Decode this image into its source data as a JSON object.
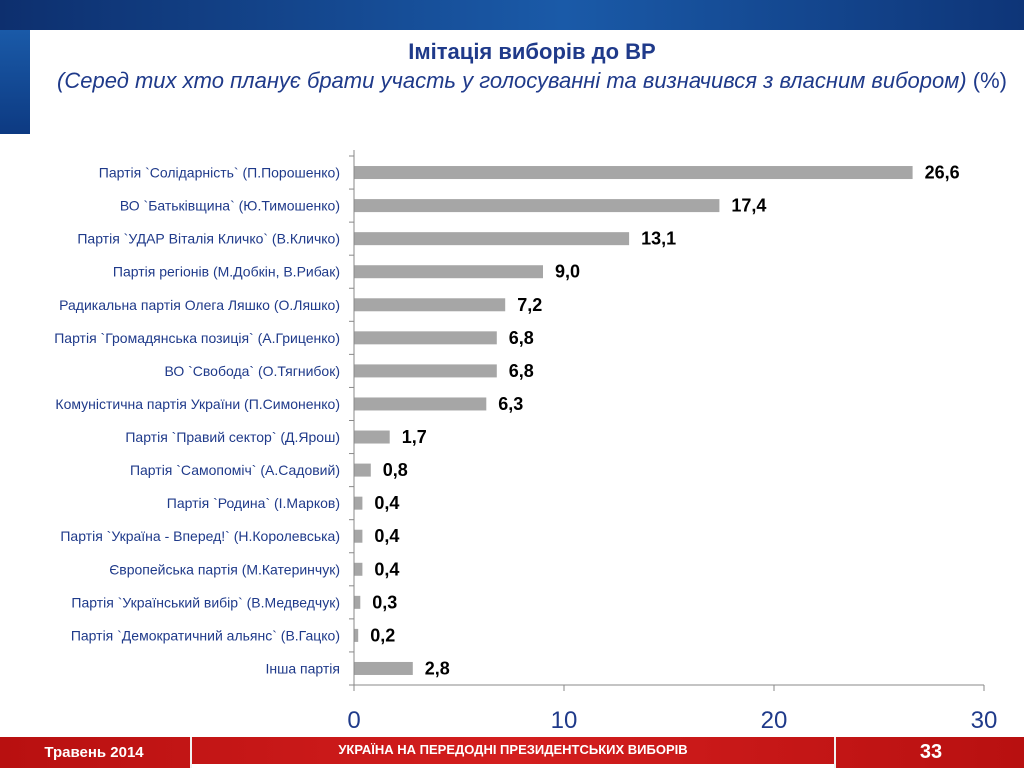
{
  "header": {
    "title": "Імітація виборів до ВР",
    "subtitle_italic": "(Серед тих хто планує брати участь у голосуванні та визначився з власним вибором)",
    "subtitle_unit": "(%)"
  },
  "chart_data": {
    "type": "bar",
    "orientation": "horizontal",
    "categories": [
      "Партія `Солідарність` (П.Порошенко)",
      "ВО `Батьківщина` (Ю.Тимошенко)",
      "Партія `УДАР Віталія Кличко` (В.Кличко)",
      "Партія регіонів (М.Добкін, В.Рибак)",
      "Радикальна партія Олега Ляшко (О.Ляшко)",
      "Партія `Громадянська позиція` (А.Гриценко)",
      "ВО `Свобода` (О.Тягнибок)",
      "Комуністична партія України (П.Симоненко)",
      "Партія `Правий сектор` (Д.Ярош)",
      "Партія `Самопоміч` (А.Садовий)",
      "Партія `Родина` (І.Марков)",
      "Партія `Україна - Вперед!` (Н.Королевська)",
      "Європейська партія (М.Катеринчук)",
      "Партія `Український вибір` (В.Медведчук)",
      "Партія `Демократичний альянс` (В.Гацко)",
      "Інша партія"
    ],
    "values": [
      26.6,
      17.4,
      13.1,
      9.0,
      7.2,
      6.8,
      6.8,
      6.3,
      1.7,
      0.8,
      0.4,
      0.4,
      0.4,
      0.3,
      0.2,
      2.8
    ],
    "value_labels": [
      "26,6",
      "17,4",
      "13,1",
      "9,0",
      "7,2",
      "6,8",
      "6,8",
      "6,3",
      "1,7",
      "0,8",
      "0,4",
      "0,4",
      "0,4",
      "0,3",
      "0,2",
      "2,8"
    ],
    "xlim": [
      0,
      30
    ],
    "xticks": [
      "0",
      "10",
      "20",
      "30"
    ],
    "bar_color": "#a6a6a6",
    "grid": false
  },
  "footer": {
    "date": "Травень 2014",
    "center_text": "УКРАЇНА НА ПЕРЕДОДНІ ПРЕЗИДЕНТСЬКИХ ВИБОРІВ",
    "page_number": "33"
  },
  "colors": {
    "title": "#1f3a8a",
    "footer_red": "#c81818",
    "top_band": "#1a5aa8"
  }
}
